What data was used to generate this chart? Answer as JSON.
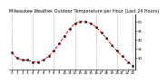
{
  "title": "Milwaukee Weather Outdoor Temperature per Hour (Last 24 Hours)",
  "hours": [
    0,
    1,
    2,
    3,
    4,
    5,
    6,
    7,
    8,
    9,
    10,
    11,
    12,
    13,
    14,
    15,
    16,
    17,
    18,
    19,
    20,
    21,
    22,
    23
  ],
  "temps": [
    33,
    30,
    29,
    29,
    28,
    28,
    29,
    31,
    34,
    38,
    42,
    46,
    49,
    50,
    50,
    49,
    47,
    44,
    41,
    37,
    34,
    31,
    28,
    26
  ],
  "line_color": "#ff0000",
  "marker_color": "#000000",
  "grid_color": "#aaaaaa",
  "bg_color": "#ffffff",
  "ylim": [
    24,
    54
  ],
  "yticks": [
    30,
    35,
    40,
    45,
    50
  ],
  "vgrid_positions": [
    0,
    4,
    8,
    12,
    16,
    20,
    23
  ],
  "title_fontsize": 3.5,
  "tick_fontsize": 2.8
}
